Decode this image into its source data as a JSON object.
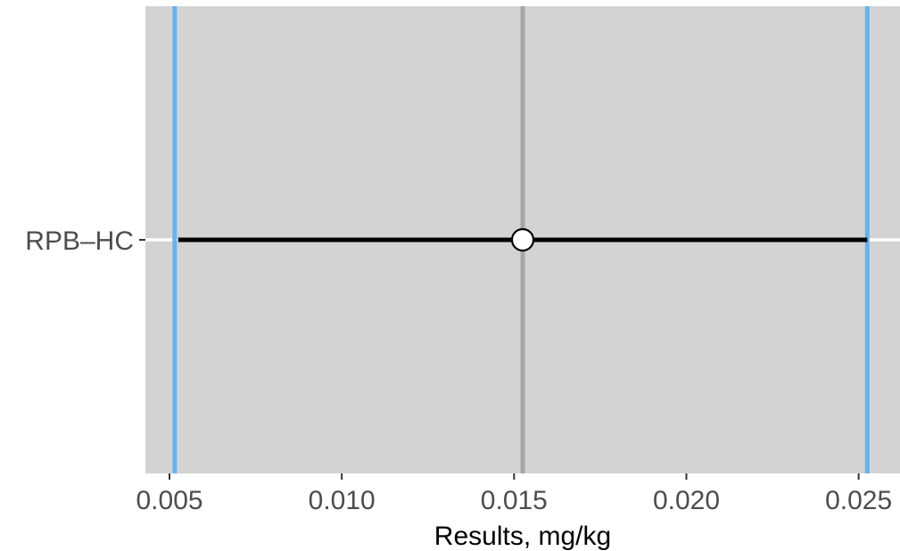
{
  "chart_data": {
    "type": "interval",
    "title": "",
    "xlabel": "Results, mg/kg",
    "ylabel": "",
    "xlim": [
      0.0043,
      0.0262
    ],
    "x_ticks": [
      {
        "value": 0.005,
        "label": "0.005"
      },
      {
        "value": 0.01,
        "label": "0.010"
      },
      {
        "value": 0.015,
        "label": "0.015"
      },
      {
        "value": 0.02,
        "label": "0.020"
      },
      {
        "value": 0.025,
        "label": "0.025"
      }
    ],
    "categories": [
      "RPB–HC"
    ],
    "intervals": [
      {
        "category": "RPB–HC",
        "lower": 0.00525,
        "estimate": 0.01525,
        "upper": 0.02525
      }
    ],
    "reference_lines": [
      {
        "kind": "center",
        "value": 0.01525,
        "color": "#a6a6a6"
      },
      {
        "kind": "lower_limit",
        "value": 0.00515,
        "color": "#63b3f5"
      },
      {
        "kind": "upper_limit",
        "value": 0.02525,
        "color": "#63b3f5"
      }
    ],
    "colors": {
      "panel_background": "#d3d3d3",
      "gridline": "#ffffff",
      "interval_line": "#000000",
      "point_fill": "#ffffff",
      "point_stroke": "#000000",
      "tick_text": "#4d4d4d",
      "axis_title": "#000000"
    },
    "grid": "horizontal-major-only",
    "legend": "none"
  }
}
